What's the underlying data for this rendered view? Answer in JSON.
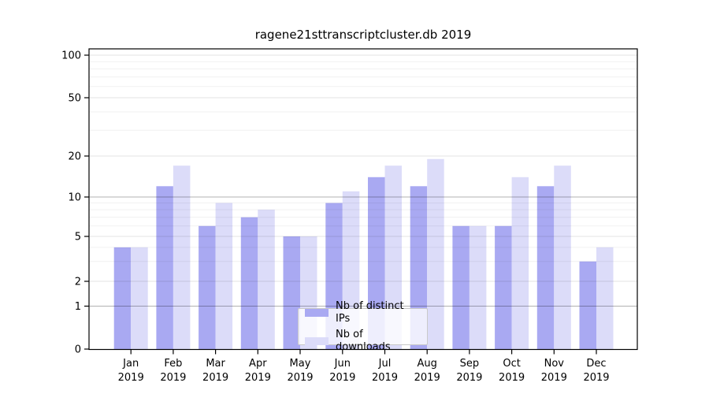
{
  "title": "ragene21sttranscriptcluster.db 2019",
  "legend": {
    "items": [
      {
        "label": "Nb of distinct IPs"
      },
      {
        "label": "Nb of downloads"
      }
    ]
  },
  "chart_data": {
    "type": "bar",
    "title": "ragene21sttranscriptcluster.db 2019",
    "categories": [
      "Jan",
      "Feb",
      "Mar",
      "Apr",
      "May",
      "Jun",
      "Jul",
      "Aug",
      "Sep",
      "Oct",
      "Nov",
      "Dec"
    ],
    "year_label": "2019",
    "series": [
      {
        "name": "Nb of distinct IPs",
        "color": "#a9a9f2",
        "values": [
          4,
          12,
          6,
          7,
          5,
          9,
          14,
          12,
          6,
          6,
          12,
          3
        ]
      },
      {
        "name": "Nb of downloads",
        "color": "#dcdcf9",
        "values": [
          4,
          17,
          9,
          8,
          5,
          11,
          17,
          19,
          6,
          14,
          17,
          4
        ]
      }
    ],
    "y_axis": {
      "scale": "log above 1, linear 0-1",
      "ticks": [
        0,
        1,
        2,
        5,
        10,
        20,
        50,
        100
      ],
      "range": [
        0,
        111
      ]
    },
    "xlabel": "",
    "ylabel": "",
    "grid": "on",
    "legend_position": "lower center"
  }
}
